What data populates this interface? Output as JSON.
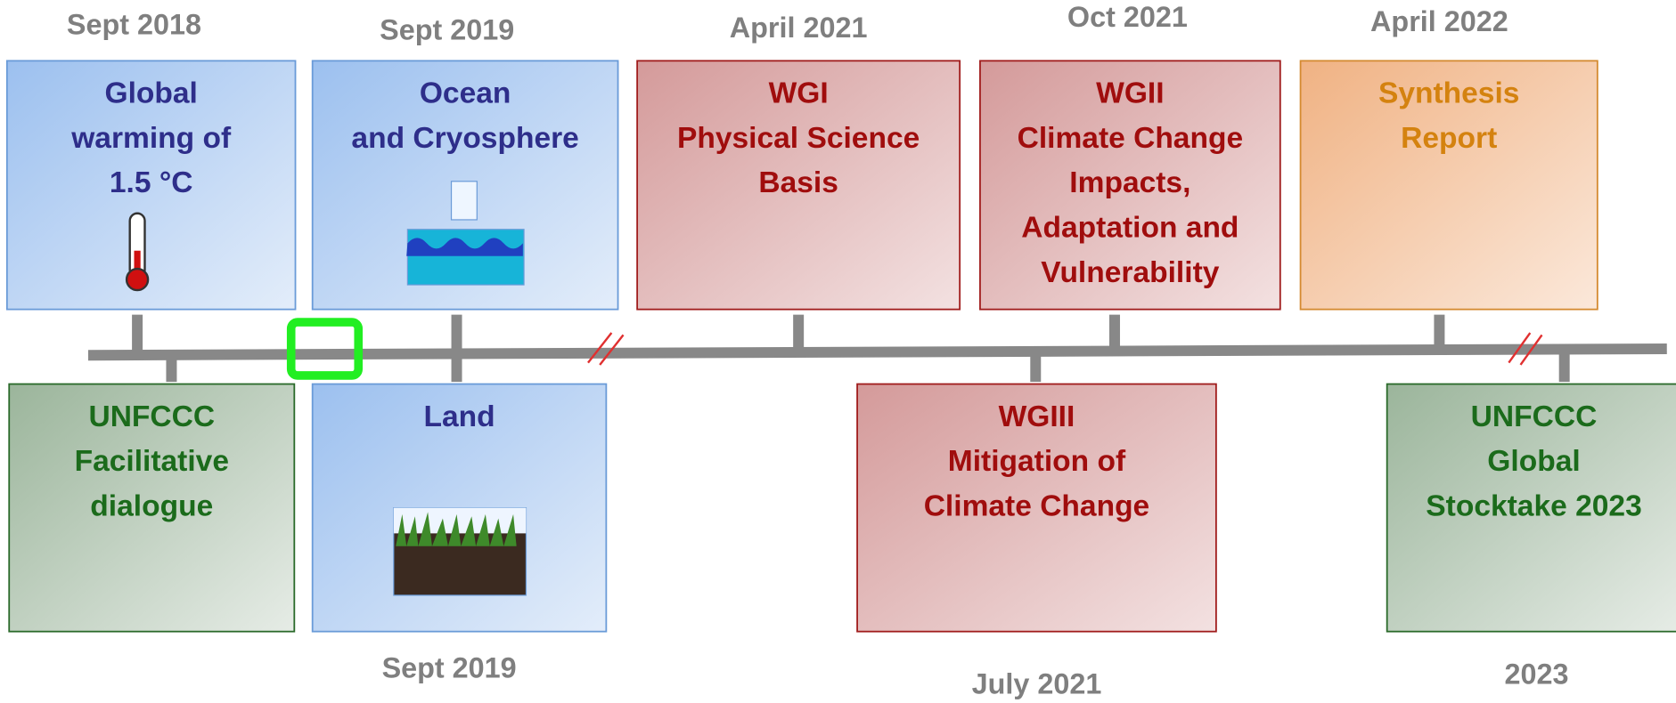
{
  "top": [
    {
      "date": "Sept 2018",
      "title": [
        "Global",
        "warming of",
        "1.5 °C"
      ]
    },
    {
      "date": "Sept 2019",
      "title": [
        "Ocean",
        "and Cryosphere"
      ]
    },
    {
      "date": "April 2021",
      "title": [
        "WGI",
        "Physical Science",
        "Basis"
      ]
    },
    {
      "date": "Oct 2021",
      "title": [
        "WGII",
        "Climate Change",
        "Impacts,",
        "Adaptation and",
        "Vulnerability"
      ]
    },
    {
      "date": "April 2022",
      "title": [
        "Synthesis",
        "Report"
      ]
    }
  ],
  "bottom": [
    {
      "title": [
        "UNFCCC",
        "Facilitative",
        "dialogue"
      ]
    },
    {
      "date": "Sept 2019",
      "title": [
        "Land"
      ]
    },
    {
      "date": "July 2021",
      "title": [
        "WGIII",
        "Mitigation of",
        "Climate Change"
      ]
    },
    {
      "date": "2023",
      "title": [
        "UNFCCC",
        "Global",
        "Stocktake 2023"
      ]
    }
  ]
}
